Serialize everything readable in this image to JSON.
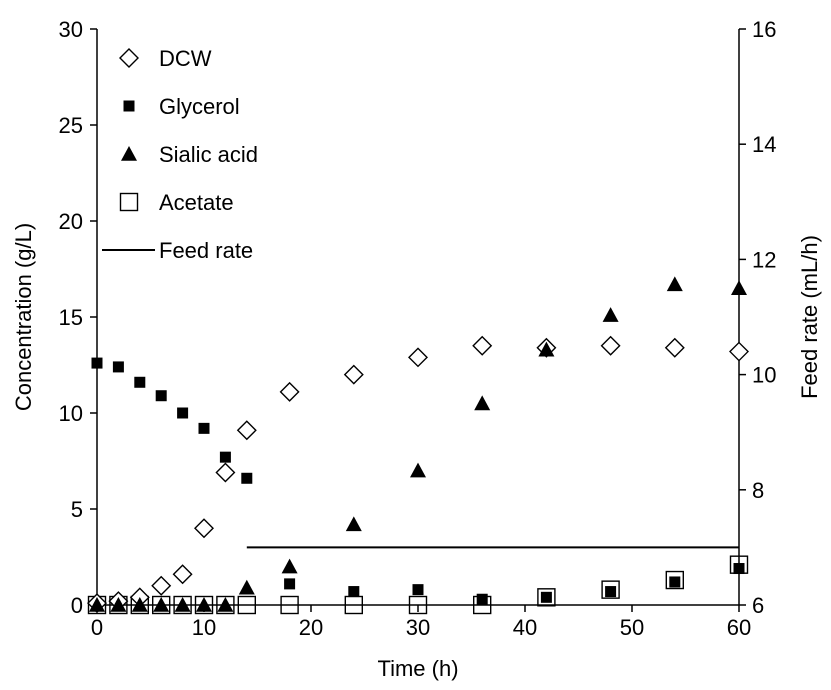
{
  "chart_data": {
    "type": "scatter",
    "xlabel": "Time (h)",
    "ylabel": "Concentration (g/L)",
    "y2label": "Feed rate (mL/h)",
    "xlim": [
      0,
      60
    ],
    "ylim": [
      0,
      30
    ],
    "y2lim": [
      6,
      16
    ],
    "x_ticks": [
      "0",
      "10",
      "20",
      "30",
      "40",
      "50",
      "60"
    ],
    "y_ticks": [
      "0",
      "5",
      "10",
      "15",
      "20",
      "25",
      "30"
    ],
    "y2_ticks": [
      "6",
      "8",
      "10",
      "12",
      "14",
      "16"
    ],
    "legend_position": "top-left",
    "grid": false,
    "series": [
      {
        "name": "DCW",
        "marker": "diamond-open",
        "x": [
          0,
          2,
          4,
          6,
          8,
          10,
          12,
          14,
          18,
          24,
          30,
          36,
          42,
          48,
          54,
          60
        ],
        "y": [
          0.1,
          0.2,
          0.4,
          1.0,
          1.6,
          4.0,
          6.9,
          9.1,
          11.1,
          12.0,
          12.9,
          13.5,
          13.4,
          13.5,
          13.4,
          13.2
        ]
      },
      {
        "name": "Glycerol",
        "marker": "square-filled",
        "x": [
          0,
          2,
          4,
          6,
          8,
          10,
          12,
          14,
          18,
          24,
          30,
          36,
          42,
          48,
          54,
          60
        ],
        "y": [
          12.6,
          12.4,
          11.6,
          10.9,
          10.0,
          9.2,
          7.7,
          6.6,
          1.1,
          0.7,
          0.8,
          0.3,
          0.4,
          0.7,
          1.2,
          1.9
        ]
      },
      {
        "name": "Sialic acid",
        "marker": "triangle-filled",
        "x": [
          0,
          2,
          4,
          6,
          8,
          10,
          12,
          14,
          18,
          24,
          30,
          36,
          42,
          48,
          54,
          60
        ],
        "y": [
          0.0,
          0.0,
          0.0,
          0.0,
          0.0,
          0.0,
          0.0,
          0.9,
          2.0,
          4.2,
          7.0,
          10.5,
          13.3,
          15.1,
          16.7,
          16.5
        ]
      },
      {
        "name": "Acetate",
        "marker": "square-open",
        "x": [
          0,
          2,
          4,
          6,
          8,
          10,
          12,
          14,
          18,
          24,
          30,
          36,
          42,
          48,
          54,
          60
        ],
        "y": [
          0,
          0,
          0,
          0,
          0,
          0,
          0,
          0,
          0,
          0,
          0,
          0,
          0.4,
          0.8,
          1.3,
          2.1
        ]
      },
      {
        "name": "Feed rate",
        "marker": "line",
        "axis": "right",
        "x": [
          14,
          60
        ],
        "y": [
          7.0,
          7.0
        ]
      }
    ]
  }
}
